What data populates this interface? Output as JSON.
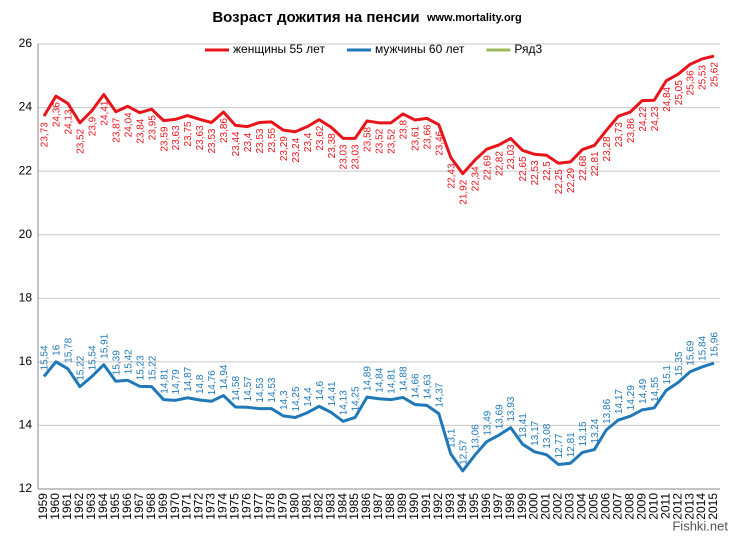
{
  "chart_data": {
    "type": "line",
    "title": "Возраст дожития на пенсии",
    "subtitle": "www.mortality.org",
    "watermark": "Fishki.net",
    "legend": "top",
    "grid": true,
    "ylim": [
      12,
      26
    ],
    "yticks": [
      12,
      14,
      16,
      18,
      20,
      22,
      24,
      26
    ],
    "categories": [
      "1959",
      "1960",
      "1961",
      "1962",
      "1963",
      "1964",
      "1965",
      "1966",
      "1967",
      "1968",
      "1969",
      "1970",
      "1971",
      "1972",
      "1973",
      "1974",
      "1975",
      "1976",
      "1977",
      "1978",
      "1979",
      "1980",
      "1981",
      "1982",
      "1983",
      "1984",
      "1985",
      "1986",
      "1987",
      "1988",
      "1989",
      "1990",
      "1991",
      "1992",
      "1993",
      "1994",
      "1995",
      "1996",
      "1997",
      "1998",
      "1999",
      "2000",
      "2001",
      "2002",
      "2003",
      "2004",
      "2005",
      "2006",
      "2007",
      "2008",
      "2009",
      "2010",
      "2011",
      "2012",
      "2013",
      "2014",
      "2015"
    ],
    "series": [
      {
        "name": "женщины 55 лет",
        "color": "#e8141b",
        "label_side": "below",
        "values": [
          23.73,
          24.36,
          24.13,
          23.52,
          23.9,
          24.41,
          23.87,
          24.04,
          23.84,
          23.95,
          23.59,
          23.63,
          23.75,
          23.63,
          23.53,
          23.86,
          23.44,
          23.4,
          23.53,
          23.55,
          23.29,
          23.24,
          23.4,
          23.62,
          23.38,
          23.03,
          23.03,
          23.58,
          23.52,
          23.52,
          23.8,
          23.61,
          23.66,
          23.46,
          22.43,
          21.92,
          22.34,
          22.69,
          22.82,
          23.03,
          22.65,
          22.53,
          22.5,
          22.25,
          22.29,
          22.68,
          22.81,
          23.28,
          23.73,
          23.86,
          24.22,
          24.23,
          24.84,
          25.05,
          25.36,
          25.53,
          25.62
        ],
        "value_labels": [
          "23,73",
          "24,36",
          "24,13",
          "23,52",
          "23,9",
          "24,41",
          "23,87",
          "24,04",
          "23,84",
          "23,95",
          "23,59",
          "23,63",
          "23,75",
          "23,63",
          "23,53",
          "23,86",
          "23,44",
          "23,4",
          "23,53",
          "23,55",
          "23,29",
          "23,24",
          "23,4",
          "23,62",
          "23,38",
          "23,03",
          "23,03",
          "23,58",
          "23,52",
          "23,52",
          "23,8",
          "23,61",
          "23,66",
          "23,46",
          "22,43",
          "21,92",
          "22,34",
          "22,69",
          "22,82",
          "23,03",
          "22,65",
          "22,53",
          "22,5",
          "22,25",
          "22,29",
          "22,68",
          "22,81",
          "23,28",
          "23,73",
          "23,86",
          "24,22",
          "24,23",
          "24,84",
          "25,05",
          "25,36",
          "25,53",
          "25,62"
        ]
      },
      {
        "name": "мужчины 60 лет",
        "color": "#1f78b8",
        "label_side": "above",
        "values": [
          15.54,
          16,
          15.78,
          15.22,
          15.54,
          15.91,
          15.39,
          15.42,
          15.23,
          15.22,
          14.81,
          14.79,
          14.87,
          14.8,
          14.76,
          14.94,
          14.58,
          14.57,
          14.53,
          14.53,
          14.3,
          14.25,
          14.4,
          14.6,
          14.41,
          14.13,
          14.25,
          14.89,
          14.84,
          14.81,
          14.88,
          14.66,
          14.63,
          14.37,
          13.1,
          12.57,
          13.06,
          13.49,
          13.69,
          13.93,
          13.41,
          13.17,
          13.08,
          12.77,
          12.81,
          13.15,
          13.24,
          13.86,
          14.17,
          14.29,
          14.49,
          14.55,
          15.1,
          15.35,
          15.69,
          15.84,
          15.96
        ],
        "value_labels": [
          "15,54",
          "16",
          "15,78",
          "15,22",
          "15,54",
          "15,91",
          "15,39",
          "15,42",
          "15,23",
          "15,22",
          "14,81",
          "14,79",
          "14,87",
          "14,8",
          "14,76",
          "14,94",
          "14,58",
          "14,57",
          "14,53",
          "14,53",
          "14,3",
          "14,25",
          "14,4",
          "14,6",
          "14,41",
          "14,13",
          "14,25",
          "14,89",
          "14,84",
          "14,81",
          "14,88",
          "14,66",
          "14,63",
          "14,37",
          "13,1",
          "12,57",
          "13,06",
          "13,49",
          "13,69",
          "13,93",
          "13,41",
          "13,17",
          "13,08",
          "12,77",
          "12,81",
          "13,15",
          "13,24",
          "13,86",
          "14,17",
          "14,29",
          "14,49",
          "14,55",
          "15,1",
          "15,35",
          "15,69",
          "15,84",
          "15,96"
        ]
      },
      {
        "name": "Ряд3",
        "color": "#9bbb59",
        "values": [
          null,
          null,
          null,
          null,
          null,
          null,
          null,
          null,
          null,
          null,
          null,
          null,
          null,
          null,
          null,
          null,
          null,
          null,
          null,
          null,
          null,
          null,
          null,
          null,
          null,
          null,
          null,
          null,
          null,
          null,
          null,
          null,
          null,
          null,
          null,
          null,
          null,
          null,
          null,
          null,
          null,
          null,
          null,
          null,
          null,
          null,
          null,
          null,
          null,
          null,
          null,
          null,
          null,
          null,
          null,
          null,
          null
        ]
      }
    ]
  }
}
